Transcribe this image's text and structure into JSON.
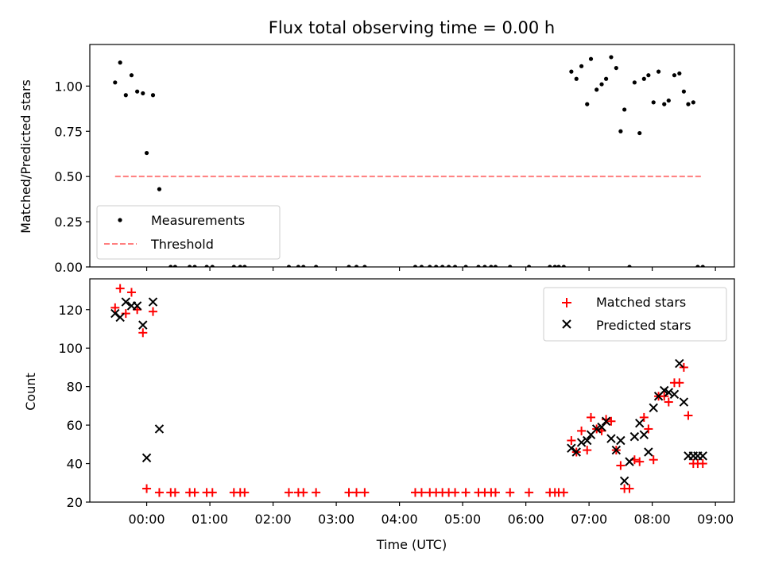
{
  "chart_data": [
    {
      "type": "scatter",
      "title": "Flux total observing time = 0.00 h",
      "xlabel": "",
      "ylabel": "Matched/Predicted stars",
      "xlim": [
        -0.9,
        9.3
      ],
      "ylim": [
        0,
        1.23
      ],
      "yticks": [
        0.0,
        0.25,
        0.5,
        0.75,
        1.0
      ],
      "yticklabels": [
        "0.00",
        "0.25",
        "0.50",
        "0.75",
        "1.00"
      ],
      "legend": {
        "position": "lower-left",
        "entries": [
          "Measurements",
          "Threshold"
        ]
      },
      "series": [
        {
          "name": "Measurements",
          "color": "#000000",
          "marker": "dot",
          "x": [
            -0.5,
            -0.42,
            -0.33,
            -0.24,
            -0.15,
            -0.06,
            0.0,
            0.1,
            0.2,
            0.38,
            0.45,
            0.68,
            0.76,
            0.95,
            1.04,
            1.38,
            1.48,
            1.55,
            2.25,
            2.4,
            2.48,
            2.68,
            3.2,
            3.32,
            3.45,
            4.25,
            4.35,
            4.48,
            4.58,
            4.68,
            4.78,
            4.88,
            5.05,
            5.25,
            5.35,
            5.45,
            5.52,
            5.75,
            6.05,
            6.38,
            6.46,
            6.52,
            6.6,
            6.72,
            6.8,
            6.88,
            6.97,
            7.03,
            7.12,
            7.2,
            7.27,
            7.35,
            7.43,
            7.5,
            7.56,
            7.64,
            7.72,
            7.8,
            7.87,
            7.94,
            8.02,
            8.1,
            8.19,
            8.26,
            8.35,
            8.43,
            8.5,
            8.57,
            8.65,
            8.72,
            8.8
          ],
          "y": [
            1.02,
            1.13,
            0.95,
            1.06,
            0.97,
            0.96,
            0.63,
            0.95,
            0.43,
            0.0,
            0.0,
            0.0,
            0.0,
            0.0,
            0.0,
            0.0,
            0.0,
            0.0,
            0.0,
            0.0,
            0.0,
            0.0,
            0.0,
            0.0,
            0.0,
            0.0,
            0.0,
            0.0,
            0.0,
            0.0,
            0.0,
            0.0,
            0.0,
            0.0,
            0.0,
            0.0,
            0.0,
            0.0,
            0.0,
            0.0,
            0.0,
            0.0,
            0.0,
            1.08,
            1.04,
            1.11,
            0.9,
            1.15,
            0.98,
            1.01,
            1.04,
            1.16,
            1.1,
            0.75,
            0.87,
            0.0,
            1.02,
            0.74,
            1.04,
            1.06,
            0.91,
            1.08,
            0.9,
            0.92,
            1.06,
            1.07,
            0.97,
            0.9,
            0.91,
            0.0,
            0.0
          ]
        },
        {
          "name": "Threshold",
          "color": "#ff7f7f",
          "style": "dashed",
          "x": [
            -0.5,
            8.8
          ],
          "y": [
            0.5,
            0.5
          ]
        }
      ]
    },
    {
      "type": "scatter",
      "title": "",
      "xlabel": "Time (UTC)",
      "ylabel": "Count",
      "xlim": [
        -0.9,
        9.3
      ],
      "ylim": [
        20,
        136
      ],
      "xticks": [
        0,
        1,
        2,
        3,
        4,
        5,
        6,
        7,
        8,
        9
      ],
      "xticklabels": [
        "00:00",
        "01:00",
        "02:00",
        "03:00",
        "04:00",
        "05:00",
        "06:00",
        "07:00",
        "08:00",
        "09:00"
      ],
      "yticks": [
        20,
        40,
        60,
        80,
        100,
        120
      ],
      "yticklabels": [
        "20",
        "40",
        "60",
        "80",
        "100",
        "120"
      ],
      "legend": {
        "position": "top-right",
        "entries": [
          "Matched stars",
          "Predicted stars"
        ]
      },
      "series": [
        {
          "name": "Matched stars",
          "color": "#ff0000",
          "marker": "plus",
          "x": [
            -0.5,
            -0.42,
            -0.33,
            -0.24,
            -0.15,
            -0.06,
            0.0,
            0.1,
            0.2,
            0.38,
            0.45,
            0.68,
            0.76,
            0.95,
            1.04,
            1.38,
            1.48,
            1.55,
            2.25,
            2.4,
            2.48,
            2.68,
            3.2,
            3.32,
            3.45,
            4.25,
            4.35,
            4.48,
            4.58,
            4.68,
            4.78,
            4.88,
            5.05,
            5.25,
            5.35,
            5.45,
            5.52,
            5.75,
            6.05,
            6.38,
            6.46,
            6.52,
            6.6,
            6.72,
            6.8,
            6.88,
            6.97,
            7.03,
            7.12,
            7.2,
            7.27,
            7.35,
            7.43,
            7.5,
            7.56,
            7.64,
            7.72,
            7.8,
            7.87,
            7.94,
            8.02,
            8.1,
            8.19,
            8.26,
            8.35,
            8.43,
            8.5,
            8.57,
            8.65,
            8.72,
            8.8
          ],
          "y": [
            121,
            131,
            118,
            129,
            120,
            108,
            27,
            119,
            25,
            25,
            25,
            25,
            25,
            25,
            25,
            25,
            25,
            25,
            25,
            25,
            25,
            25,
            25,
            25,
            25,
            25,
            25,
            25,
            25,
            25,
            25,
            25,
            25,
            25,
            25,
            25,
            25,
            25,
            25,
            25,
            25,
            25,
            25,
            52,
            46,
            57,
            47,
            64,
            58,
            57,
            63,
            62,
            47,
            39,
            27,
            27,
            42,
            41,
            64,
            58,
            42,
            75,
            75,
            72,
            82,
            82,
            90,
            65,
            40,
            40,
            40
          ]
        },
        {
          "name": "Predicted stars",
          "color": "#000000",
          "marker": "x",
          "x": [
            -0.5,
            -0.42,
            -0.33,
            -0.24,
            -0.15,
            -0.06,
            0.0,
            0.1,
            0.2,
            6.72,
            6.8,
            6.88,
            6.97,
            7.03,
            7.12,
            7.2,
            7.27,
            7.35,
            7.43,
            7.5,
            7.56,
            7.64,
            7.72,
            7.8,
            7.87,
            7.94,
            8.02,
            8.1,
            8.19,
            8.26,
            8.35,
            8.43,
            8.5,
            8.57,
            8.65,
            8.72,
            8.8
          ],
          "y": [
            118,
            116,
            124,
            122,
            122,
            112,
            43,
            124,
            58,
            48,
            46,
            51,
            52,
            55,
            58,
            59,
            62,
            53,
            47,
            52,
            31,
            41,
            54,
            61,
            55,
            46,
            69,
            75,
            78,
            77,
            76,
            92,
            72,
            44,
            44,
            44,
            44
          ]
        }
      ]
    }
  ]
}
